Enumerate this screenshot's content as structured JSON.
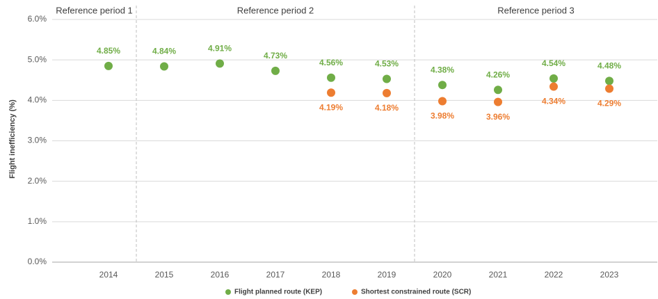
{
  "chart_data": {
    "type": "dot",
    "y_axis_label": "Flight inefficiency (%)",
    "categories": [
      "2014",
      "2015",
      "2016",
      "2017",
      "2018",
      "2019",
      "2020",
      "2021",
      "2022",
      "2023"
    ],
    "series": [
      {
        "name": "Flight planned route (KEP)",
        "color": "#70ad47",
        "values": [
          4.85,
          4.84,
          4.91,
          4.73,
          4.56,
          4.53,
          4.38,
          4.26,
          4.54,
          4.48
        ],
        "value_labels": [
          "4.85%",
          "4.84%",
          "4.91%",
          "4.73%",
          "4.56%",
          "4.53%",
          "4.38%",
          "4.26%",
          "4.54%",
          "4.48%"
        ]
      },
      {
        "name": "Shortest constrained route (SCR)",
        "color": "#ed7d31",
        "values": [
          null,
          null,
          null,
          null,
          4.19,
          4.18,
          3.98,
          3.96,
          4.34,
          4.29
        ],
        "value_labels": [
          null,
          null,
          null,
          null,
          "4.19%",
          "4.18%",
          "3.98%",
          "3.96%",
          "4.34%",
          "4.29%"
        ]
      }
    ],
    "periods": [
      {
        "label": "Reference period 1",
        "from": "2014",
        "to": "2014"
      },
      {
        "label": "Reference period 2",
        "from": "2015",
        "to": "2019"
      },
      {
        "label": "Reference period 3",
        "from": "2020",
        "to": "2023"
      }
    ],
    "ylim": [
      0,
      6
    ],
    "yticks": [
      {
        "value": 0,
        "label": "0.0%"
      },
      {
        "value": 1,
        "label": "1.0%"
      },
      {
        "value": 2,
        "label": "2.0%"
      },
      {
        "value": 3,
        "label": "3.0%"
      },
      {
        "value": 4,
        "label": "4.0%"
      },
      {
        "value": 5,
        "label": "5.0%"
      },
      {
        "value": 6,
        "label": "6.0%"
      }
    ],
    "grid": true,
    "legend": "bottom"
  }
}
